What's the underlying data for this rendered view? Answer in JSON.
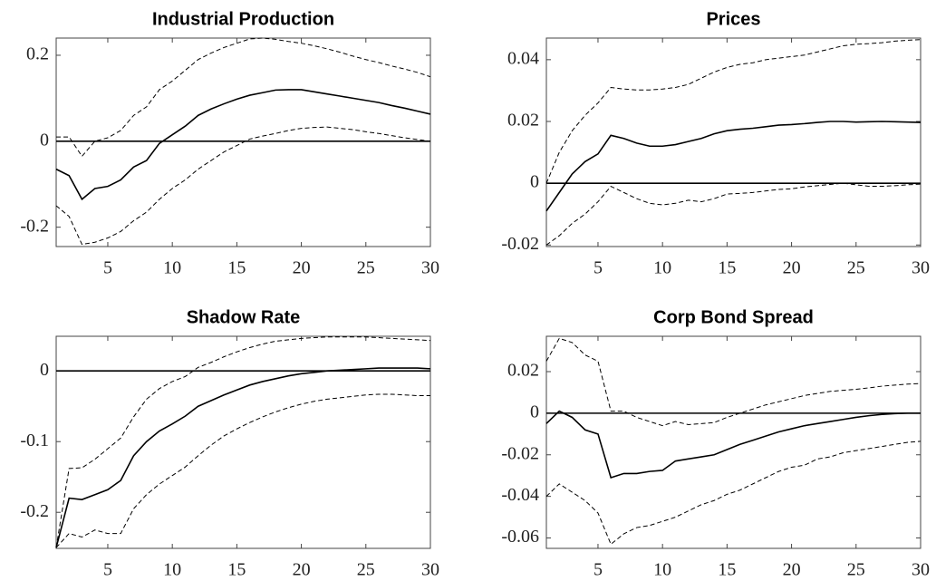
{
  "chart_data": [
    {
      "type": "line",
      "title": "Industrial Production",
      "x": [
        1,
        2,
        3,
        4,
        5,
        6,
        7,
        8,
        9,
        10,
        11,
        12,
        13,
        14,
        15,
        16,
        17,
        18,
        19,
        20,
        21,
        22,
        23,
        24,
        25,
        26,
        27,
        28,
        29,
        30
      ],
      "xlim": [
        1,
        30
      ],
      "xticks": [
        5,
        10,
        15,
        20,
        25,
        30
      ],
      "ylim": [
        -0.245,
        0.24
      ],
      "yticks": [
        -0.2,
        0,
        0.2
      ],
      "reference_line": 0,
      "series": [
        {
          "color": "#000000",
          "style": "solid",
          "values": [
            -0.065,
            -0.08,
            -0.135,
            -0.11,
            -0.105,
            -0.09,
            -0.06,
            -0.045,
            -0.005,
            0.015,
            0.035,
            0.06,
            0.075,
            0.087,
            0.098,
            0.107,
            0.113,
            0.119,
            0.12,
            0.12,
            0.115,
            0.11,
            0.105,
            0.1,
            0.095,
            0.09,
            0.083,
            0.077,
            0.07,
            0.063
          ]
        },
        {
          "color": "#000000",
          "style": "dashed",
          "values": [
            0.01,
            0.01,
            -0.035,
            0,
            0.008,
            0.025,
            0.06,
            0.08,
            0.12,
            0.14,
            0.165,
            0.19,
            0.205,
            0.218,
            0.228,
            0.238,
            0.24,
            0.237,
            0.232,
            0.228,
            0.222,
            0.215,
            0.207,
            0.198,
            0.19,
            0.183,
            0.175,
            0.168,
            0.16,
            0.15
          ]
        },
        {
          "color": "#000000",
          "style": "dashed",
          "values": [
            -0.15,
            -0.175,
            -0.24,
            -0.235,
            -0.225,
            -0.21,
            -0.185,
            -0.165,
            -0.135,
            -0.11,
            -0.09,
            -0.065,
            -0.045,
            -0.025,
            -0.01,
            0.005,
            0.012,
            0.018,
            0.025,
            0.03,
            0.032,
            0.033,
            0.03,
            0.027,
            0.022,
            0.018,
            0.013,
            0.008,
            0.004,
            0
          ]
        }
      ]
    },
    {
      "type": "line",
      "title": "Prices",
      "x": [
        1,
        2,
        3,
        4,
        5,
        6,
        7,
        8,
        9,
        10,
        11,
        12,
        13,
        14,
        15,
        16,
        17,
        18,
        19,
        20,
        21,
        22,
        23,
        24,
        25,
        26,
        27,
        28,
        29,
        30
      ],
      "xlim": [
        1,
        30
      ],
      "xticks": [
        5,
        10,
        15,
        20,
        25,
        30
      ],
      "ylim": [
        -0.0205,
        0.047
      ],
      "yticks": [
        -0.02,
        0,
        0.02,
        0.04
      ],
      "reference_line": 0,
      "series": [
        {
          "color": "#000000",
          "style": "solid",
          "values": [
            -0.009,
            -0.003,
            0.003,
            0.007,
            0.0095,
            0.0155,
            0.0145,
            0.013,
            0.012,
            0.012,
            0.0125,
            0.0135,
            0.0145,
            0.016,
            0.017,
            0.0175,
            0.0178,
            0.0183,
            0.0188,
            0.019,
            0.0193,
            0.0197,
            0.02,
            0.02,
            0.0198,
            0.0199,
            0.02,
            0.0199,
            0.0198,
            0.0197
          ]
        },
        {
          "color": "#000000",
          "style": "dashed",
          "values": [
            0,
            0.01,
            0.017,
            0.022,
            0.026,
            0.031,
            0.0305,
            0.0302,
            0.0302,
            0.0305,
            0.031,
            0.032,
            0.034,
            0.036,
            0.0375,
            0.0385,
            0.039,
            0.04,
            0.0405,
            0.041,
            0.0415,
            0.0425,
            0.0435,
            0.0445,
            0.045,
            0.0452,
            0.0455,
            0.046,
            0.0463,
            0.0465
          ]
        },
        {
          "color": "#000000",
          "style": "dashed",
          "values": [
            -0.02,
            -0.017,
            -0.013,
            -0.01,
            -0.006,
            -0.001,
            -0.003,
            -0.005,
            -0.0065,
            -0.007,
            -0.0065,
            -0.0055,
            -0.006,
            -0.005,
            -0.0035,
            -0.0033,
            -0.003,
            -0.0025,
            -0.002,
            -0.0018,
            -0.0012,
            -0.0008,
            -0.0004,
            0,
            -0.0005,
            -0.001,
            -0.001,
            -0.0008,
            -0.0005,
            -0.0003
          ]
        }
      ]
    },
    {
      "type": "line",
      "title": "Shadow Rate",
      "x": [
        1,
        2,
        3,
        4,
        5,
        6,
        7,
        8,
        9,
        10,
        11,
        12,
        13,
        14,
        15,
        16,
        17,
        18,
        19,
        20,
        21,
        22,
        23,
        24,
        25,
        26,
        27,
        28,
        29,
        30
      ],
      "xlim": [
        1,
        30
      ],
      "xticks": [
        5,
        10,
        15,
        20,
        25,
        30
      ],
      "ylim": [
        -0.251,
        0.049
      ],
      "yticks": [
        -0.2,
        -0.1,
        0
      ],
      "reference_line": 0,
      "series": [
        {
          "color": "#000000",
          "style": "solid",
          "values": [
            -0.25,
            -0.18,
            -0.182,
            -0.175,
            -0.168,
            -0.155,
            -0.12,
            -0.1,
            -0.085,
            -0.075,
            -0.064,
            -0.05,
            -0.042,
            -0.034,
            -0.027,
            -0.02,
            -0.015,
            -0.011,
            -0.007,
            -0.004,
            -0.002,
            0,
            0.001,
            0.002,
            0.003,
            0.004,
            0.004,
            0.004,
            0.004,
            0.003
          ]
        },
        {
          "color": "#000000",
          "style": "dashed",
          "values": [
            -0.25,
            -0.138,
            -0.137,
            -0.125,
            -0.11,
            -0.095,
            -0.065,
            -0.04,
            -0.025,
            -0.015,
            -0.008,
            0.005,
            0.012,
            0.02,
            0.027,
            0.033,
            0.038,
            0.042,
            0.044,
            0.046,
            0.047,
            0.048,
            0.048,
            0.048,
            0.048,
            0.047,
            0.046,
            0.045,
            0.044,
            0.043
          ]
        },
        {
          "color": "#000000",
          "style": "dashed",
          "values": [
            -0.25,
            -0.23,
            -0.235,
            -0.225,
            -0.23,
            -0.23,
            -0.195,
            -0.175,
            -0.16,
            -0.148,
            -0.136,
            -0.12,
            -0.105,
            -0.092,
            -0.082,
            -0.073,
            -0.065,
            -0.058,
            -0.052,
            -0.047,
            -0.043,
            -0.04,
            -0.038,
            -0.036,
            -0.034,
            -0.033,
            -0.033,
            -0.034,
            -0.035,
            -0.035
          ]
        }
      ]
    },
    {
      "type": "line",
      "title": "Corp Bond Spread",
      "x": [
        1,
        2,
        3,
        4,
        5,
        6,
        7,
        8,
        9,
        10,
        11,
        12,
        13,
        14,
        15,
        16,
        17,
        18,
        19,
        20,
        21,
        22,
        23,
        24,
        25,
        26,
        27,
        28,
        29,
        30
      ],
      "xlim": [
        1,
        30
      ],
      "xticks": [
        5,
        10,
        15,
        20,
        25,
        30
      ],
      "ylim": [
        -0.065,
        0.037
      ],
      "yticks": [
        -0.06,
        -0.04,
        -0.02,
        0,
        0.02
      ],
      "reference_line": 0,
      "series": [
        {
          "color": "#000000",
          "style": "solid",
          "values": [
            -0.005,
            0.001,
            -0.002,
            -0.008,
            -0.01,
            -0.031,
            -0.029,
            -0.029,
            -0.028,
            -0.0275,
            -0.023,
            -0.022,
            -0.021,
            -0.02,
            -0.0175,
            -0.015,
            -0.013,
            -0.011,
            -0.009,
            -0.0075,
            -0.006,
            -0.005,
            -0.004,
            -0.003,
            -0.002,
            -0.0012,
            -0.0006,
            -0.0002,
            0,
            0
          ]
        },
        {
          "color": "#000000",
          "style": "dashed",
          "values": [
            0.025,
            0.036,
            0.034,
            0.028,
            0.025,
            0.001,
            0.001,
            -0.002,
            -0.004,
            -0.006,
            -0.004,
            -0.0055,
            -0.005,
            -0.0045,
            -0.002,
            0,
            0.002,
            0.004,
            0.0055,
            0.007,
            0.0085,
            0.0095,
            0.0105,
            0.011,
            0.0115,
            0.0122,
            0.013,
            0.0135,
            0.014,
            0.0143
          ]
        },
        {
          "color": "#000000",
          "style": "dashed",
          "values": [
            -0.04,
            -0.034,
            -0.038,
            -0.042,
            -0.048,
            -0.063,
            -0.058,
            -0.055,
            -0.054,
            -0.052,
            -0.05,
            -0.047,
            -0.044,
            -0.042,
            -0.039,
            -0.037,
            -0.034,
            -0.031,
            -0.028,
            -0.026,
            -0.025,
            -0.022,
            -0.021,
            -0.019,
            -0.018,
            -0.017,
            -0.016,
            -0.015,
            -0.014,
            -0.0135
          ]
        }
      ]
    }
  ]
}
